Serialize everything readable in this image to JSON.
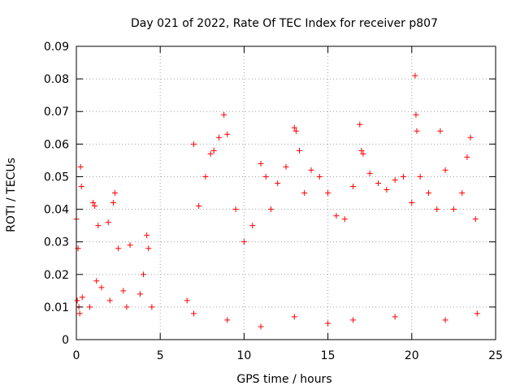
{
  "chart_data": {
    "type": "scatter",
    "title": "Day 021 of 2022, Rate Of TEC Index for receiver p807",
    "xlabel": "GPS time / hours",
    "ylabel": "ROTI / TECUs",
    "xlim": [
      0,
      25
    ],
    "ylim": [
      0,
      0.09
    ],
    "x_ticks": [
      "0",
      "5",
      "10",
      "15",
      "20",
      "25"
    ],
    "y_ticks": [
      "0",
      "0.01",
      "0.02",
      "0.03",
      "0.04",
      "0.05",
      "0.06",
      "0.07",
      "0.08",
      "0.09"
    ],
    "grid": true,
    "legend": "none",
    "marker": "+",
    "marker_color": "#ff0000",
    "series": [
      {
        "note_segments": "observations present in approx. 0-0.4h, 0.7-1.6h, 1.8-3.5h, 3.7-4.6h and 6.4-24h; gap 4.6-6.4h",
        "points": [
          [
            0.0,
            0.037
          ],
          [
            0.05,
            0.012
          ],
          [
            0.1,
            0.028
          ],
          [
            0.15,
            0.01
          ],
          [
            0.2,
            0.008
          ],
          [
            0.25,
            0.053
          ],
          [
            0.3,
            0.047
          ],
          [
            0.35,
            0.013
          ],
          [
            0.8,
            0.01
          ],
          [
            1.0,
            0.042
          ],
          [
            1.1,
            0.041
          ],
          [
            1.2,
            0.018
          ],
          [
            1.3,
            0.035
          ],
          [
            1.5,
            0.016
          ],
          [
            1.9,
            0.036
          ],
          [
            2.0,
            0.012
          ],
          [
            2.2,
            0.042
          ],
          [
            2.3,
            0.045
          ],
          [
            2.5,
            0.028
          ],
          [
            2.8,
            0.015
          ],
          [
            3.0,
            0.01
          ],
          [
            3.2,
            0.029
          ],
          [
            3.8,
            0.014
          ],
          [
            4.0,
            0.02
          ],
          [
            4.2,
            0.032
          ],
          [
            4.3,
            0.028
          ],
          [
            4.5,
            0.01
          ],
          [
            6.6,
            0.012
          ],
          [
            7.0,
            0.06
          ],
          [
            7.3,
            0.041
          ],
          [
            7.7,
            0.05
          ],
          [
            8.0,
            0.057
          ],
          [
            8.2,
            0.058
          ],
          [
            8.5,
            0.062
          ],
          [
            8.8,
            0.069
          ],
          [
            9.0,
            0.063
          ],
          [
            9.5,
            0.04
          ],
          [
            10.0,
            0.03
          ],
          [
            10.5,
            0.035
          ],
          [
            11.0,
            0.054
          ],
          [
            11.3,
            0.05
          ],
          [
            11.6,
            0.04
          ],
          [
            12.0,
            0.048
          ],
          [
            12.5,
            0.053
          ],
          [
            13.0,
            0.065
          ],
          [
            13.1,
            0.064
          ],
          [
            13.3,
            0.058
          ],
          [
            13.6,
            0.045
          ],
          [
            14.0,
            0.052
          ],
          [
            14.5,
            0.05
          ],
          [
            15.0,
            0.045
          ],
          [
            15.5,
            0.038
          ],
          [
            16.0,
            0.037
          ],
          [
            16.5,
            0.047
          ],
          [
            16.9,
            0.066
          ],
          [
            17.0,
            0.058
          ],
          [
            17.1,
            0.057
          ],
          [
            17.5,
            0.051
          ],
          [
            18.0,
            0.048
          ],
          [
            18.5,
            0.046
          ],
          [
            19.0,
            0.049
          ],
          [
            19.5,
            0.05
          ],
          [
            20.0,
            0.042
          ],
          [
            20.2,
            0.081
          ],
          [
            20.25,
            0.069
          ],
          [
            20.3,
            0.064
          ],
          [
            20.5,
            0.05
          ],
          [
            21.0,
            0.045
          ],
          [
            21.5,
            0.04
          ],
          [
            21.7,
            0.064
          ],
          [
            22.0,
            0.052
          ],
          [
            22.5,
            0.04
          ],
          [
            23.0,
            0.045
          ],
          [
            23.3,
            0.056
          ],
          [
            23.5,
            0.062
          ],
          [
            23.8,
            0.037
          ],
          [
            7.0,
            0.008
          ],
          [
            9.0,
            0.006
          ],
          [
            11.0,
            0.004
          ],
          [
            13.0,
            0.007
          ],
          [
            15.0,
            0.005
          ],
          [
            16.5,
            0.006
          ],
          [
            19.0,
            0.007
          ],
          [
            22.0,
            0.006
          ],
          [
            23.9,
            0.008
          ]
        ]
      }
    ]
  }
}
